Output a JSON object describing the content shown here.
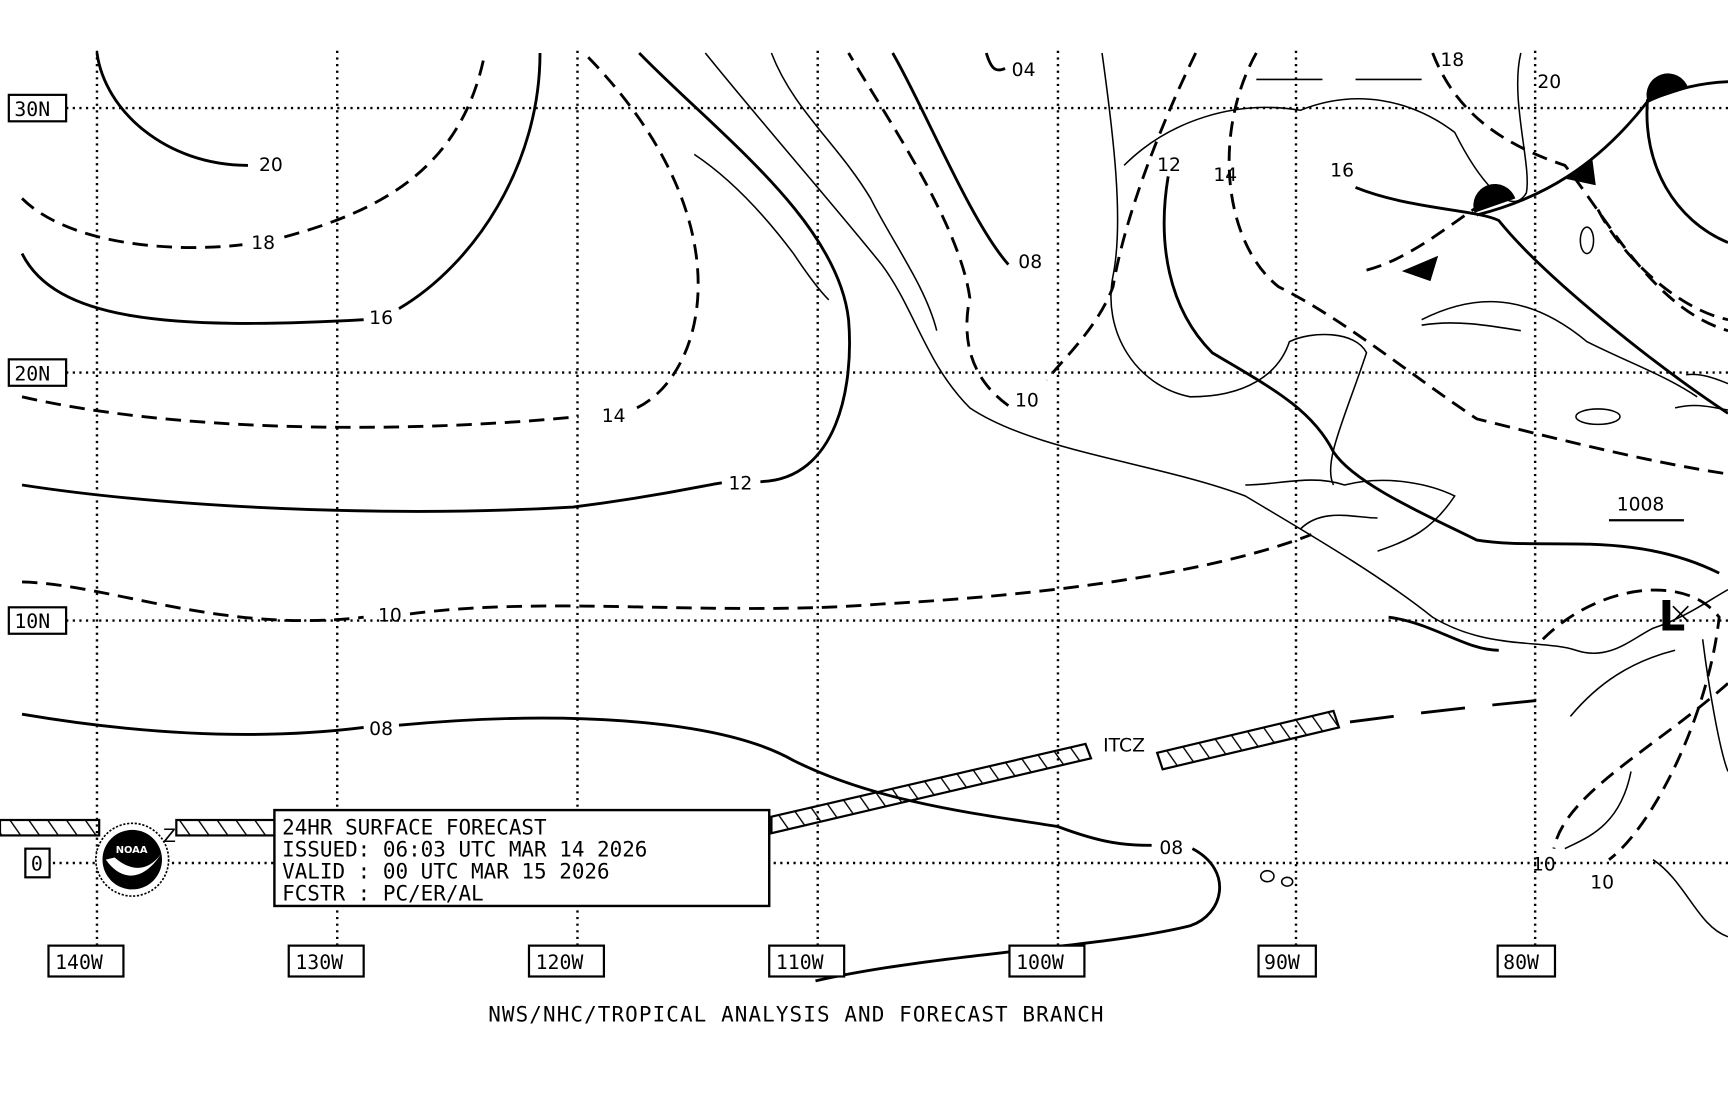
{
  "map": {
    "type": "surface forecast chart",
    "region": "Eastern Pacific / Gulf of Mexico / Caribbean",
    "lat_labels": [
      "30N",
      "20N",
      "10N",
      "0"
    ],
    "lon_labels": [
      "140W",
      "130W",
      "120W",
      "110W",
      "100W",
      "90W",
      "80W"
    ],
    "isobar_labels": {
      "west_20": "20",
      "west_18": "18",
      "west_16": "16",
      "west_14": "14",
      "west_12": "12",
      "west_10": "10",
      "west_08": "08",
      "east_08": "08",
      "north_04": "04",
      "mex_08": "08",
      "mex_10": "10",
      "gulf_12": "12",
      "gulf_14": "14",
      "gulf_16": "16",
      "fl_18": "18",
      "atl_20": "20",
      "sa_10a": "10",
      "sa_10b": "10"
    },
    "pressure_label": "1008",
    "itcz_label": "ITCZ",
    "itcz_fragment": "Z",
    "low_symbol": "L",
    "logo": "NOAA",
    "info_box": {
      "line1": "24HR SURFACE FORECAST",
      "line2": "ISSUED: 06:03 UTC MAR 14 2026",
      "line3": "VALID : 00 UTC MAR 15 2026",
      "line4": "FCSTR : PC/ER/AL"
    },
    "footer": "NWS/NHC/TROPICAL ANALYSIS AND FORECAST BRANCH",
    "colors": {
      "ink": "#000000",
      "background": "#ffffff"
    }
  }
}
